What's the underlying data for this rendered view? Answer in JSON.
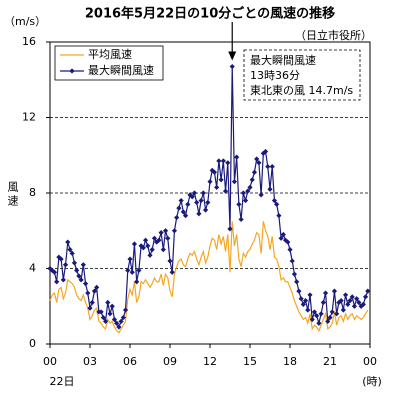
{
  "chart_data": {
    "type": "line",
    "title": "2016年5月22日の10分ごとの風速の推移",
    "y_unit": "（m/s）",
    "source": "（日立市役所）",
    "ylabel": "風速",
    "date_label": "22日",
    "x_unit": "(時)",
    "annotation": [
      "最大瞬間風速",
      "13時36分",
      "東北東の風 14.7m/s"
    ],
    "xlim": [
      0,
      1440
    ],
    "xticks": [
      {
        "value": 0,
        "label": "00"
      },
      {
        "value": 180,
        "label": "03"
      },
      {
        "value": 360,
        "label": "06"
      },
      {
        "value": 540,
        "label": "09"
      },
      {
        "value": 720,
        "label": "12"
      },
      {
        "value": 900,
        "label": "15"
      },
      {
        "value": 1080,
        "label": "18"
      },
      {
        "value": 1260,
        "label": "21"
      },
      {
        "value": 1440,
        "label": "00"
      }
    ],
    "ylim": [
      0,
      16
    ],
    "yticks": [
      0,
      4,
      8,
      12,
      16
    ],
    "grid": true,
    "legend": "upper left",
    "x": [
      0,
      10,
      20,
      30,
      40,
      50,
      60,
      70,
      80,
      90,
      100,
      110,
      120,
      130,
      140,
      150,
      160,
      170,
      180,
      190,
      200,
      210,
      220,
      230,
      240,
      250,
      260,
      270,
      280,
      290,
      300,
      310,
      320,
      330,
      340,
      350,
      360,
      370,
      380,
      390,
      400,
      410,
      420,
      430,
      440,
      450,
      460,
      470,
      480,
      490,
      500,
      510,
      520,
      530,
      540,
      550,
      560,
      570,
      580,
      590,
      600,
      610,
      620,
      630,
      640,
      650,
      660,
      670,
      680,
      690,
      700,
      710,
      720,
      730,
      740,
      750,
      760,
      770,
      780,
      790,
      800,
      810,
      820,
      830,
      840,
      850,
      860,
      870,
      880,
      890,
      900,
      910,
      920,
      930,
      940,
      950,
      960,
      970,
      980,
      990,
      1000,
      1010,
      1020,
      1030,
      1040,
      1050,
      1060,
      1070,
      1080,
      1090,
      1100,
      1110,
      1120,
      1130,
      1140,
      1150,
      1160,
      1170,
      1180,
      1190,
      1200,
      1210,
      1220,
      1230,
      1240,
      1250,
      1260,
      1270,
      1280,
      1290,
      1300,
      1310,
      1320,
      1330,
      1340,
      1350,
      1360,
      1370,
      1380,
      1390,
      1400,
      1410,
      1420,
      1430
    ],
    "series": [
      {
        "name": "平均風速",
        "color": "#f5a623",
        "marker": false,
        "values": [
          2.3,
          2.6,
          2.7,
          2.2,
          2.9,
          3.0,
          2.4,
          2.7,
          3.4,
          3.3,
          3.2,
          3.0,
          2.6,
          2.4,
          2.3,
          2.6,
          2.2,
          1.9,
          1.3,
          1.5,
          1.8,
          1.9,
          1.2,
          1.1,
          0.9,
          0.8,
          1.3,
          1.1,
          1.2,
          0.9,
          0.7,
          0.6,
          0.8,
          1.0,
          1.2,
          2.4,
          2.9,
          2.6,
          3.3,
          2.2,
          2.5,
          3.3,
          3.2,
          3.4,
          3.2,
          3.0,
          3.2,
          3.5,
          3.3,
          3.3,
          3.7,
          3.1,
          3.7,
          3.5,
          2.8,
          2.5,
          3.7,
          4.1,
          4.4,
          4.5,
          4.2,
          4.1,
          4.5,
          4.8,
          4.7,
          4.9,
          4.5,
          4.2,
          4.6,
          4.9,
          4.3,
          4.6,
          5.2,
          5.6,
          5.5,
          5.0,
          5.8,
          5.3,
          5.7,
          4.9,
          5.8,
          3.8,
          6.5,
          5.2,
          5.8,
          4.5,
          4.1,
          4.8,
          4.6,
          4.9,
          5.0,
          5.3,
          5.5,
          5.9,
          5.8,
          4.8,
          6.5,
          6.0,
          5.7,
          5.0,
          5.7,
          4.6,
          4.5,
          4.1,
          3.4,
          3.5,
          3.3,
          3.3,
          3.0,
          2.7,
          2.3,
          2.0,
          1.7,
          1.5,
          1.3,
          1.4,
          1.1,
          1.6,
          0.8,
          1.0,
          0.9,
          0.7,
          1.0,
          1.3,
          1.6,
          0.8,
          0.9,
          1.1,
          1.7,
          1.0,
          1.4,
          1.5,
          1.2,
          1.6,
          1.3,
          1.5,
          1.6,
          1.3,
          1.5,
          1.4,
          1.3,
          1.4,
          1.6,
          1.8
        ]
      },
      {
        "name": "最大瞬間風速",
        "color": "#1a1a7a",
        "marker": true,
        "values": [
          4.0,
          3.9,
          3.8,
          3.3,
          4.6,
          4.5,
          3.4,
          4.2,
          5.4,
          5.0,
          4.8,
          4.3,
          3.9,
          3.6,
          3.4,
          4.2,
          3.2,
          2.7,
          1.9,
          2.2,
          2.8,
          3.0,
          1.7,
          1.7,
          1.4,
          1.2,
          2.2,
          1.6,
          2.0,
          1.3,
          1.1,
          0.9,
          1.2,
          1.4,
          1.8,
          3.9,
          4.5,
          3.8,
          5.3,
          3.3,
          3.9,
          5.2,
          5.1,
          5.5,
          5.2,
          4.7,
          5.0,
          5.6,
          5.4,
          5.5,
          5.9,
          5.0,
          6.0,
          5.6,
          4.4,
          3.8,
          6.0,
          6.7,
          7.2,
          7.6,
          7.0,
          6.8,
          7.4,
          7.9,
          7.8,
          8.0,
          7.5,
          6.9,
          7.6,
          8.0,
          7.1,
          7.5,
          8.6,
          9.2,
          9.1,
          8.3,
          9.7,
          8.7,
          9.7,
          8.1,
          9.6,
          6.1,
          14.7,
          8.6,
          9.9,
          7.4,
          6.6,
          8.0,
          7.6,
          8.1,
          8.3,
          8.7,
          9.1,
          9.8,
          9.6,
          7.9,
          10.1,
          10.2,
          9.4,
          8.2,
          9.4,
          7.6,
          7.4,
          6.8,
          5.6,
          5.8,
          5.5,
          5.4,
          5.0,
          4.4,
          3.7,
          3.3,
          2.8,
          2.4,
          2.1,
          2.3,
          1.8,
          2.6,
          1.3,
          1.7,
          1.5,
          1.1,
          1.6,
          2.2,
          2.7,
          1.2,
          1.4,
          1.7,
          2.8,
          1.6,
          2.2,
          2.3,
          1.8,
          2.6,
          2.1,
          2.3,
          2.5,
          2.0,
          2.4,
          2.2,
          2.0,
          2.1,
          2.5,
          2.8
        ]
      }
    ]
  }
}
